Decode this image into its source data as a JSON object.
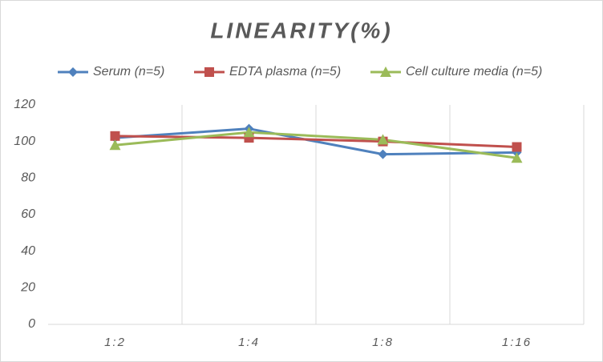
{
  "chart_data": {
    "type": "line",
    "title": "LINEARITY(%)",
    "categories": [
      "1:2",
      "1:4",
      "1:8",
      "1:16"
    ],
    "series": [
      {
        "name": "Serum (n=5)",
        "color": "#4f81bd",
        "marker": "diamond",
        "values": [
          102,
          107,
          93,
          94
        ]
      },
      {
        "name": "EDTA plasma (n=5)",
        "color": "#c0504d",
        "marker": "square",
        "values": [
          103,
          102,
          100,
          97
        ]
      },
      {
        "name": "Cell culture media (n=5)",
        "color": "#9bbb59",
        "marker": "triangle",
        "values": [
          98,
          105,
          101,
          91
        ]
      }
    ],
    "ylim": [
      0,
      120
    ],
    "yticks": [
      0,
      20,
      40,
      60,
      80,
      100,
      120
    ],
    "legend": "top"
  }
}
